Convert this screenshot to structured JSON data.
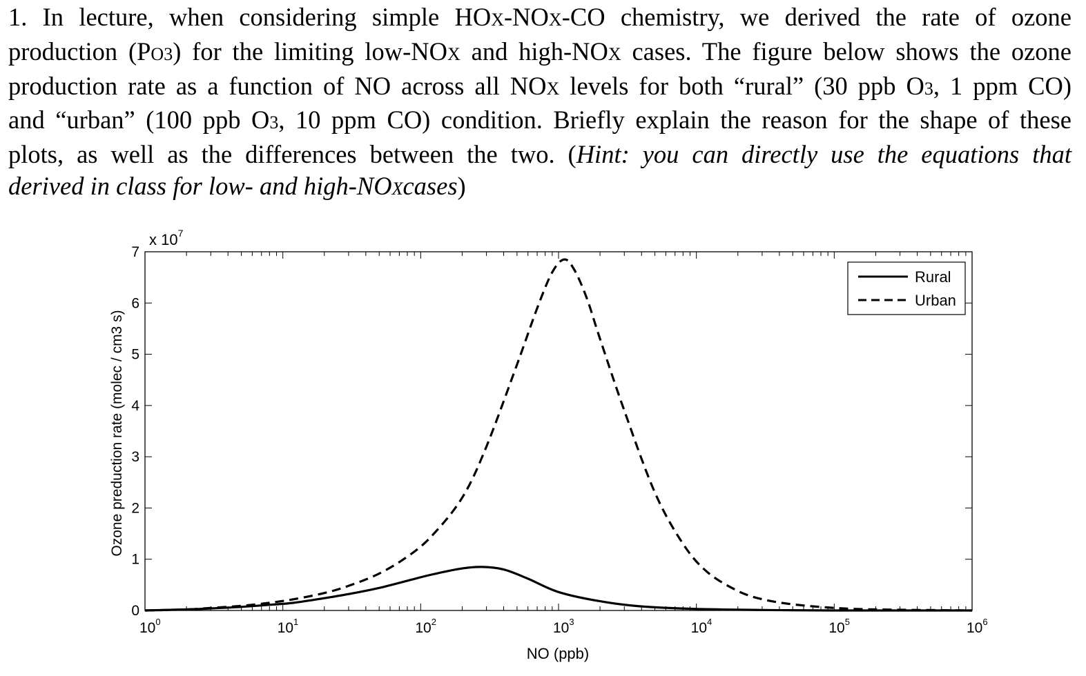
{
  "question": {
    "number": "1.",
    "lines": [
      [
        "In lecture, when considering simple HO",
        "X",
        "-NO",
        "X",
        "-CO chemistry, we derived the rate of ozone"
      ],
      [
        "production (P",
        "O3",
        ") for the limiting low-NO",
        "X",
        " and high-NO",
        "X",
        " cases. The figure below shows the ozone"
      ],
      [
        "production rate as a function of NO across all NO",
        "X",
        " levels for both “rural” (30 ppb O",
        "3",
        ", 1 ppm CO)"
      ],
      [
        "and “urban” (100 ppb O",
        "3",
        ", 10 ppm CO) condition. Briefly explain the reason for the shape of these"
      ],
      [
        "plots, as well as the differences between the two. (",
        "Hint: you can directly use the equations that"
      ],
      [
        "derived in class for low- and high-NO",
        "X",
        "cases",
        ")"
      ]
    ]
  },
  "chart_data": {
    "type": "line",
    "xscale": "log",
    "xlim": [
      1,
      1000000
    ],
    "ylim": [
      0,
      7
    ],
    "ylabel": "Ozone preduction rate (molec / cm3 s)",
    "xlabel": "NO (ppb)",
    "y_multiplier": "x 10",
    "y_multiplier_exp": "7",
    "xticks": [
      {
        "base": "10",
        "exp": "0",
        "value": 1
      },
      {
        "base": "10",
        "exp": "1",
        "value": 10
      },
      {
        "base": "10",
        "exp": "2",
        "value": 100
      },
      {
        "base": "10",
        "exp": "3",
        "value": 1000
      },
      {
        "base": "10",
        "exp": "4",
        "value": 10000
      },
      {
        "base": "10",
        "exp": "5",
        "value": 100000
      },
      {
        "base": "10",
        "exp": "6",
        "value": 1000000
      }
    ],
    "yticks": [
      "0",
      "1",
      "2",
      "3",
      "4",
      "5",
      "6",
      "7"
    ],
    "legend": {
      "position": "top-right"
    },
    "series": [
      {
        "name": "Rural",
        "style": "solid",
        "x": [
          1,
          2,
          3,
          5,
          8,
          12,
          20,
          30,
          50,
          80,
          120,
          200,
          280,
          400,
          600,
          1000,
          2000,
          4000,
          10000,
          30000,
          100000,
          1000000
        ],
        "y": [
          0.0,
          0.02,
          0.04,
          0.07,
          0.11,
          0.15,
          0.24,
          0.32,
          0.44,
          0.58,
          0.7,
          0.82,
          0.85,
          0.8,
          0.62,
          0.36,
          0.18,
          0.08,
          0.03,
          0.01,
          0.0,
          0.0
        ]
      },
      {
        "name": "Urban",
        "style": "dashed",
        "x": [
          1,
          2,
          3,
          5,
          8,
          12,
          20,
          30,
          50,
          80,
          120,
          200,
          300,
          500,
          700,
          900,
          1100,
          1300,
          1600,
          2000,
          3000,
          5000,
          8000,
          12000,
          20000,
          30000,
          50000,
          100000,
          200000,
          1000000
        ],
        "y": [
          0.0,
          0.02,
          0.05,
          0.09,
          0.15,
          0.22,
          0.34,
          0.48,
          0.72,
          1.05,
          1.45,
          2.2,
          3.2,
          4.8,
          5.9,
          6.6,
          6.85,
          6.65,
          6.1,
          5.3,
          3.9,
          2.3,
          1.3,
          0.75,
          0.38,
          0.22,
          0.12,
          0.05,
          0.02,
          0.0
        ]
      }
    ]
  }
}
